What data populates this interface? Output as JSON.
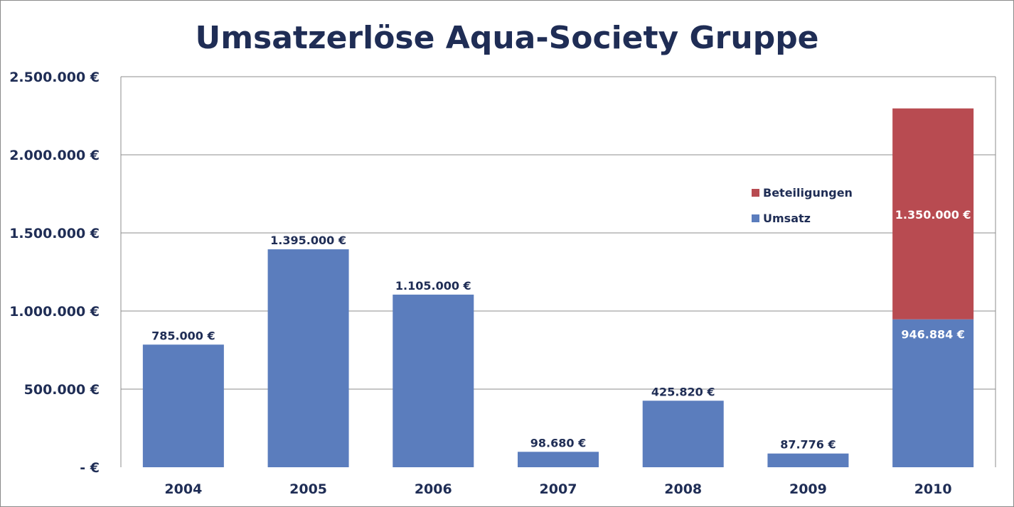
{
  "chart_data": {
    "type": "bar",
    "stacked": true,
    "title": "Umsatzerlöse Aqua-Society Gruppe",
    "xlabel": "",
    "ylabel": "",
    "categories": [
      "2004",
      "2005",
      "2006",
      "2007",
      "2008",
      "2009",
      "2010"
    ],
    "series": [
      {
        "name": "Umsatz",
        "color": "#5b7dbd",
        "values": [
          785000,
          1395000,
          1105000,
          98680,
          425820,
          87776,
          946884
        ],
        "labels": [
          "785.000 €",
          "1.395.000 €",
          "1.105.000 €",
          "98.680 €",
          "425.820 €",
          "87.776 €",
          "946.884 €"
        ]
      },
      {
        "name": "Beteiligungen",
        "color": "#b84b51",
        "values": [
          0,
          0,
          0,
          0,
          0,
          0,
          1350000
        ],
        "labels": [
          "",
          "",
          "",
          "",
          "",
          "",
          "1.350.000 €"
        ]
      }
    ],
    "ylim": [
      0,
      2500000
    ],
    "yticks": [
      0,
      500000,
      1000000,
      1500000,
      2000000,
      2500000
    ],
    "ytick_labels": [
      "-  €",
      "500.000 €",
      "1.000.000 €",
      "1.500.000 €",
      "2.000.000 €",
      "2.500.000 €"
    ],
    "grid": true,
    "legend": "right, inside plot",
    "text_color": "#1f2d55"
  }
}
